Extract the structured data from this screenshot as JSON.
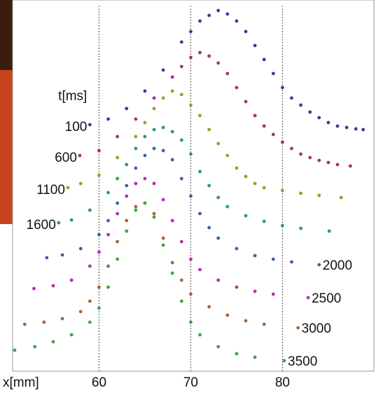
{
  "chart_data": {
    "type": "scatter",
    "x_label": "x[mm]",
    "legend_title": "t[ms]",
    "xlim": [
      49.2,
      90.2
    ],
    "ylim": [
      0,
      530
    ],
    "xticks": [
      60,
      70,
      80
    ],
    "grid": true,
    "series": [
      {
        "name": "100",
        "color": "#3b3b9c",
        "x": [
          59,
          61,
          63,
          65,
          67,
          69,
          70,
          71,
          72,
          73,
          74,
          75,
          76,
          77,
          78,
          79,
          80,
          81,
          82,
          83,
          84,
          85,
          86,
          87,
          88,
          88.8
        ],
        "values": [
          352,
          360,
          375,
          400,
          430,
          470,
          485,
          500,
          508,
          515,
          510,
          500,
          485,
          465,
          445,
          425,
          405,
          390,
          380,
          370,
          362,
          355,
          350,
          348,
          346,
          345
        ]
      },
      {
        "name": "600",
        "color": "#a3307c",
        "x": [
          57.9,
          60,
          62,
          64,
          66,
          68,
          69,
          70,
          71,
          72,
          73,
          74,
          75,
          76,
          77,
          78,
          79,
          80,
          81,
          82,
          83,
          84,
          85,
          86,
          87.4
        ],
        "values": [
          308,
          315,
          335,
          360,
          390,
          420,
          435,
          448,
          455,
          450,
          440,
          425,
          405,
          385,
          365,
          350,
          338,
          327,
          318,
          310,
          305,
          301,
          298,
          295,
          293
        ]
      },
      {
        "name": "1100",
        "color": "#a39a2e",
        "x": [
          56.6,
          58,
          60,
          62,
          64,
          65,
          66,
          67,
          68,
          69,
          70,
          71,
          72,
          73,
          74,
          75,
          76,
          77,
          78,
          80,
          82,
          84,
          86.4
        ],
        "values": [
          262,
          268,
          280,
          305,
          335,
          355,
          375,
          390,
          400,
          395,
          380,
          365,
          345,
          325,
          308,
          290,
          278,
          268,
          262,
          258,
          254,
          251,
          248
        ]
      },
      {
        "name": "1600",
        "color": "#2f9e55",
        "x": [
          55.6,
          57,
          59,
          61,
          62,
          63,
          64,
          65,
          66,
          67,
          68,
          69,
          70,
          71,
          72,
          73,
          74,
          76,
          78,
          80,
          82,
          85.1
        ],
        "values": [
          212,
          216,
          230,
          255,
          275,
          295,
          318,
          335,
          345,
          348,
          342,
          330,
          310,
          285,
          265,
          248,
          235,
          222,
          214,
          208,
          204,
          200
        ]
      },
      {
        "name": "2000",
        "color": "#3b62aa",
        "x": [
          54.3,
          56,
          58,
          60,
          61,
          62,
          63,
          64,
          65,
          66,
          67,
          68,
          69,
          70,
          71,
          72,
          73,
          75,
          77,
          79,
          81,
          84
        ],
        "values": [
          162,
          166,
          175,
          195,
          215,
          240,
          265,
          290,
          308,
          318,
          315,
          302,
          275,
          250,
          225,
          205,
          190,
          175,
          165,
          160,
          156,
          152
        ]
      },
      {
        "name": "2500",
        "color": "#b030b0",
        "x": [
          52.9,
          55,
          57,
          59,
          60,
          61,
          62,
          63,
          64,
          65,
          66,
          67,
          68,
          69,
          70,
          71,
          73,
          75,
          77,
          79,
          82.8
        ],
        "values": [
          118,
          122,
          130,
          150,
          170,
          195,
          225,
          250,
          268,
          275,
          268,
          245,
          215,
          185,
          160,
          145,
          130,
          120,
          114,
          110,
          105
        ]
      },
      {
        "name": "3000",
        "color": "#a8663a",
        "x": [
          51.9,
          54,
          56,
          58,
          59,
          60,
          61,
          62,
          63,
          64,
          65,
          66,
          67,
          68,
          69,
          70,
          72,
          74,
          76,
          78,
          81.7
        ],
        "values": [
          67,
          70,
          75,
          85,
          100,
          120,
          150,
          185,
          215,
          235,
          240,
          225,
          190,
          155,
          130,
          110,
          92,
          80,
          72,
          67,
          62
        ]
      },
      {
        "name": "3500",
        "color": "#3fa33f",
        "x": [
          50.8,
          53,
          55,
          57,
          59,
          60,
          61,
          62,
          63,
          64,
          65,
          66,
          67,
          68,
          69,
          70,
          71,
          73,
          75,
          77,
          80.2
        ],
        "values": [
          30,
          35,
          42,
          52,
          70,
          90,
          120,
          160,
          200,
          230,
          240,
          220,
          180,
          140,
          100,
          70,
          52,
          35,
          25,
          20,
          15
        ]
      }
    ]
  }
}
